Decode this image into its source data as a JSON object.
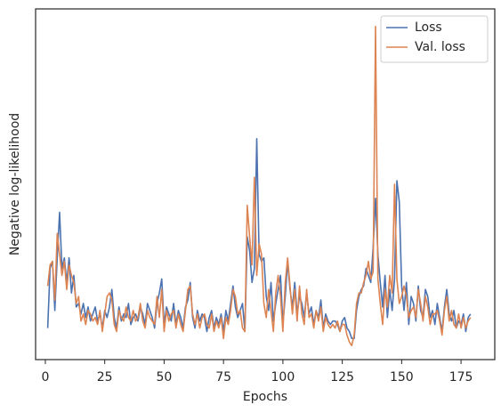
{
  "chart_data": {
    "type": "line",
    "xlabel": "Epochs",
    "ylabel": "Negative log-likelihood",
    "x": [
      1,
      2,
      3,
      4,
      5,
      6,
      7,
      8,
      9,
      10,
      11,
      12,
      13,
      14,
      15,
      16,
      17,
      18,
      19,
      20,
      21,
      22,
      23,
      24,
      25,
      26,
      27,
      28,
      29,
      30,
      31,
      32,
      33,
      34,
      35,
      36,
      37,
      38,
      39,
      40,
      41,
      42,
      43,
      44,
      45,
      46,
      47,
      48,
      49,
      50,
      51,
      52,
      53,
      54,
      55,
      56,
      57,
      58,
      59,
      60,
      61,
      62,
      63,
      64,
      65,
      66,
      67,
      68,
      69,
      70,
      71,
      72,
      73,
      74,
      75,
      76,
      77,
      78,
      79,
      80,
      81,
      82,
      83,
      84,
      85,
      86,
      87,
      88,
      89,
      90,
      91,
      92,
      93,
      94,
      95,
      96,
      97,
      98,
      99,
      100,
      101,
      102,
      103,
      104,
      105,
      106,
      107,
      108,
      109,
      110,
      111,
      112,
      113,
      114,
      115,
      116,
      117,
      118,
      119,
      120,
      121,
      122,
      123,
      124,
      125,
      126,
      127,
      128,
      129,
      130,
      131,
      132,
      133,
      134,
      135,
      136,
      137,
      138,
      139,
      140,
      141,
      142,
      143,
      144,
      145,
      146,
      147,
      148,
      149,
      150,
      151,
      152,
      153,
      154,
      155,
      156,
      157,
      158,
      159,
      160,
      161,
      162,
      163,
      164,
      165,
      166,
      167,
      168,
      169,
      170,
      171,
      172,
      173,
      174,
      175,
      176,
      177,
      178,
      179
    ],
    "series": [
      {
        "name": "Loss",
        "color": "#4c72b0",
        "values": [
          9,
          26,
          28,
          14,
          29,
          42,
          26,
          29,
          22,
          29,
          19,
          24,
          15,
          16,
          13,
          16,
          12,
          15,
          11,
          13,
          15,
          11,
          13,
          9,
          14,
          12,
          15,
          20,
          12,
          9,
          15,
          11,
          13,
          12,
          16,
          10,
          12,
          13,
          11,
          15,
          13,
          10,
          16,
          14,
          12,
          9,
          16,
          19,
          23,
          10,
          15,
          13,
          11,
          16,
          10,
          14,
          12,
          9,
          15,
          17,
          22,
          12,
          9,
          14,
          11,
          13,
          12,
          8,
          12,
          14,
          9,
          12,
          10,
          13,
          8,
          14,
          11,
          16,
          21,
          15,
          12,
          14,
          16,
          8,
          35,
          31,
          22,
          26,
          63,
          30,
          28,
          29,
          18,
          14,
          22,
          11,
          16,
          20,
          24,
          10,
          18,
          28,
          20,
          15,
          22,
          13,
          18,
          16,
          12,
          19,
          13,
          15,
          10,
          14,
          12,
          17,
          9,
          13,
          11,
          10,
          11,
          11,
          10,
          8,
          11,
          12,
          9,
          8,
          6,
          6,
          14,
          18,
          20,
          21,
          26,
          24,
          22,
          32,
          46,
          30,
          22,
          15,
          24,
          12,
          20,
          14,
          23,
          51,
          45,
          21,
          14,
          22,
          10,
          18,
          16,
          11,
          21,
          14,
          12,
          20,
          18,
          12,
          14,
          10,
          16,
          12,
          8,
          15,
          20,
          13,
          11,
          14,
          9,
          11,
          10,
          13,
          8,
          12,
          13
        ]
      },
      {
        "name": "Val. loss",
        "color": "#dd8452",
        "values": [
          21,
          27,
          28,
          17,
          36,
          30,
          24,
          28,
          20,
          27,
          24,
          22,
          16,
          18,
          11,
          13,
          10,
          14,
          13,
          11,
          12,
          10,
          14,
          8,
          13,
          18,
          19,
          17,
          10,
          8,
          14,
          12,
          11,
          15,
          12,
          11,
          14,
          11,
          12,
          16,
          11,
          9,
          14,
          12,
          11,
          10,
          18,
          12,
          20,
          8,
          14,
          11,
          13,
          14,
          9,
          13,
          10,
          8,
          14,
          20,
          21,
          13,
          10,
          13,
          9,
          12,
          13,
          10,
          9,
          13,
          8,
          11,
          9,
          12,
          6,
          12,
          10,
          14,
          20,
          18,
          13,
          14,
          9,
          8,
          44,
          35,
          27,
          52,
          24,
          33,
          30,
          16,
          12,
          20,
          14,
          8,
          19,
          24,
          18,
          8,
          22,
          29,
          21,
          13,
          20,
          11,
          21,
          13,
          10,
          20,
          12,
          13,
          9,
          14,
          11,
          15,
          8,
          12,
          10,
          9,
          10,
          9,
          11,
          8,
          10,
          10,
          7,
          5,
          4,
          7,
          16,
          19,
          19,
          22,
          24,
          28,
          23,
          25,
          95,
          23,
          16,
          10,
          20,
          15,
          24,
          19,
          50,
          23,
          16,
          18,
          21,
          18,
          12,
          14,
          15,
          12,
          20,
          16,
          11,
          18,
          15,
          10,
          13,
          13,
          14,
          11,
          7,
          14,
          18,
          11,
          14,
          10,
          9,
          13,
          9,
          12,
          9,
          11,
          12
        ]
      }
    ],
    "xlim": [
      -4.1,
      189.2
    ],
    "ylim": [
      0,
      100
    ],
    "xticks": [
      0,
      25,
      50,
      75,
      100,
      125,
      150,
      175
    ],
    "legend": "upper right"
  }
}
